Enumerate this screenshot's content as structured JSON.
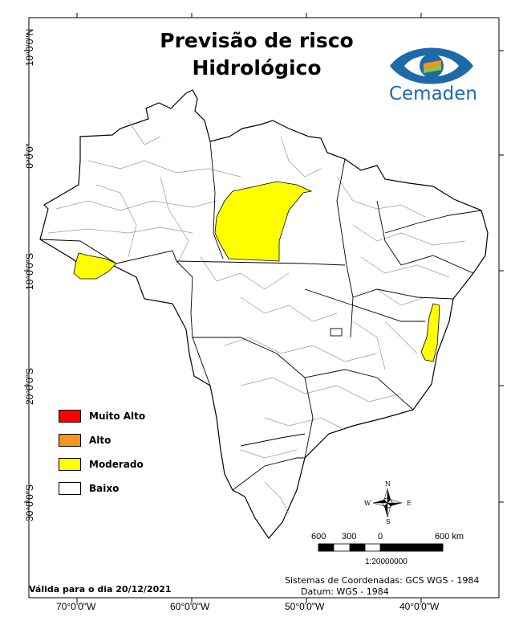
{
  "title": {
    "line1": "Previsão de risco",
    "line2": "Hidrológico"
  },
  "logo": {
    "name": "Cemaden",
    "text": "Cemaden"
  },
  "latitude_labels": [
    "10°0'0\"N",
    "0°0'0\"",
    "10°0'0\"S",
    "20°0'0\"S",
    "30°0'0\"S"
  ],
  "longitude_labels": [
    "70°0'0\"W",
    "60°0'0\"W",
    "50°0'0\"W",
    "40°0'0\"W"
  ],
  "legend": {
    "items": [
      {
        "label": "Muito Alto",
        "color": "#ff0000"
      },
      {
        "label": "Alto",
        "color": "#f7941d"
      },
      {
        "label": "Moderado",
        "color": "#ffff00"
      },
      {
        "label": "Baixo",
        "color": "#ffffff"
      }
    ]
  },
  "scale_bar": {
    "labels": [
      "600",
      "300",
      "0",
      "600 km"
    ],
    "ratio": "1:20000000"
  },
  "compass": {
    "n": "N",
    "s": "S",
    "e": "E",
    "w": "W"
  },
  "validity": "Válida para o dia 20/12/2021",
  "coordinate_system": {
    "line1": "Sistemas de Coordenadas: GCS WGS - 1984",
    "line2": "Datum: WGS - 1984"
  },
  "colors": {
    "moderado_fill": "#ffff00",
    "state_border": "#000000",
    "basin_border": "#9a9a9a"
  }
}
